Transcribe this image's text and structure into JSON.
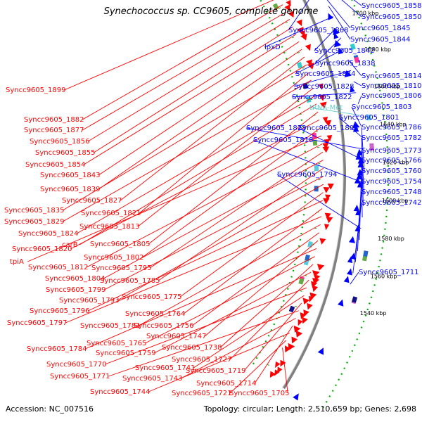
{
  "title": "Synechococcus sp. CC9605, complete genome",
  "accession": "Accession: NC_007516",
  "topology": "Topology: circular; Length: 2,510,659 bp; Genes: 2,698",
  "ticks": [
    "1740 kbp",
    "1720 kbp",
    "1700 kbp",
    "1680 kbp",
    "1660 kbp",
    "1640 kbp",
    "1620 kbp",
    "1600 kbp",
    "1580 kbp",
    "1560 kbp",
    "1540 kbp"
  ],
  "right_labels": [
    "Syncc9605_1858",
    "Syncc9605_1850",
    "Syncc9605_1868",
    "Syncc9605_1845",
    "Syncc9605_1844",
    "lpxD",
    "Syncc9605_1842",
    "Syncc9605_1838",
    "Syncc9605_1834",
    "Syncc9605_1814",
    "Syncc9605_1828",
    "Syncc9605_1810",
    "Syncc9605_1822",
    "Syncc9605_1806",
    "tRNA-Met",
    "Syncc9605_1803",
    "Syncc9605_1801",
    "Syncc9605_1823",
    "Syncc9605_1808",
    "Syncc9605_1786",
    "Syncc9605_1818",
    "Syncc9605_1782",
    "Syncc9605_1773",
    "Syncc9605_1766",
    "Syncc9605_1794",
    "Syncc9605_1760",
    "Syncc9605_1754",
    "Syncc9605_1748",
    "Syncc9605_1742",
    "Syncc9605_1711"
  ],
  "left_labels": [
    "Syncc9605_1899",
    "Syncc9605_1882",
    "Syncc9605_1877",
    "Syncc9605_1856",
    "Syncc9605_1855",
    "Syncc9605_1854",
    "Syncc9605_1843",
    "Syncc9605_1839",
    "Syncc9605_1827",
    "Syncc9605_1835",
    "Syncc9605_1821",
    "Syncc9605_1829",
    "Syncc9605_1813",
    "Syncc9605_1824",
    "carB",
    "Syncc9605_1805",
    "Syncc9605_1820",
    "Syncc9605_1802",
    "tpiA",
    "Syncc9605_1812",
    "Syncc9605_1795",
    "Syncc9605_1804",
    "Syncc9605_1785",
    "Syncc9605_1799",
    "Syncc9605_1793",
    "Syncc9605_1775",
    "Syncc9605_1796",
    "Syncc9605_1764",
    "Syncc9605_1797",
    "Syncc9605_1781",
    "Syncc9605_1756",
    "Syncc9605_1747",
    "Syncc9605_1784",
    "Syncc9605_1765",
    "Syncc9605_1738",
    "Syncc9605_1759",
    "Syncc9605_1727",
    "Syncc9605_1770",
    "Syncc9605_1741",
    "Syncc9605_1719",
    "Syncc9605_1771",
    "Syncc9605_1743",
    "Syncc9605_1714",
    "Syncc9605_1744",
    "Syncc9605_1721",
    "Syncc9605_1705"
  ],
  "colors": {
    "forward": "#ff0000",
    "reverse": "#0000ff",
    "backbone": "#808080",
    "tick_dots": "#00aa00",
    "trna": "#66cccc"
  }
}
